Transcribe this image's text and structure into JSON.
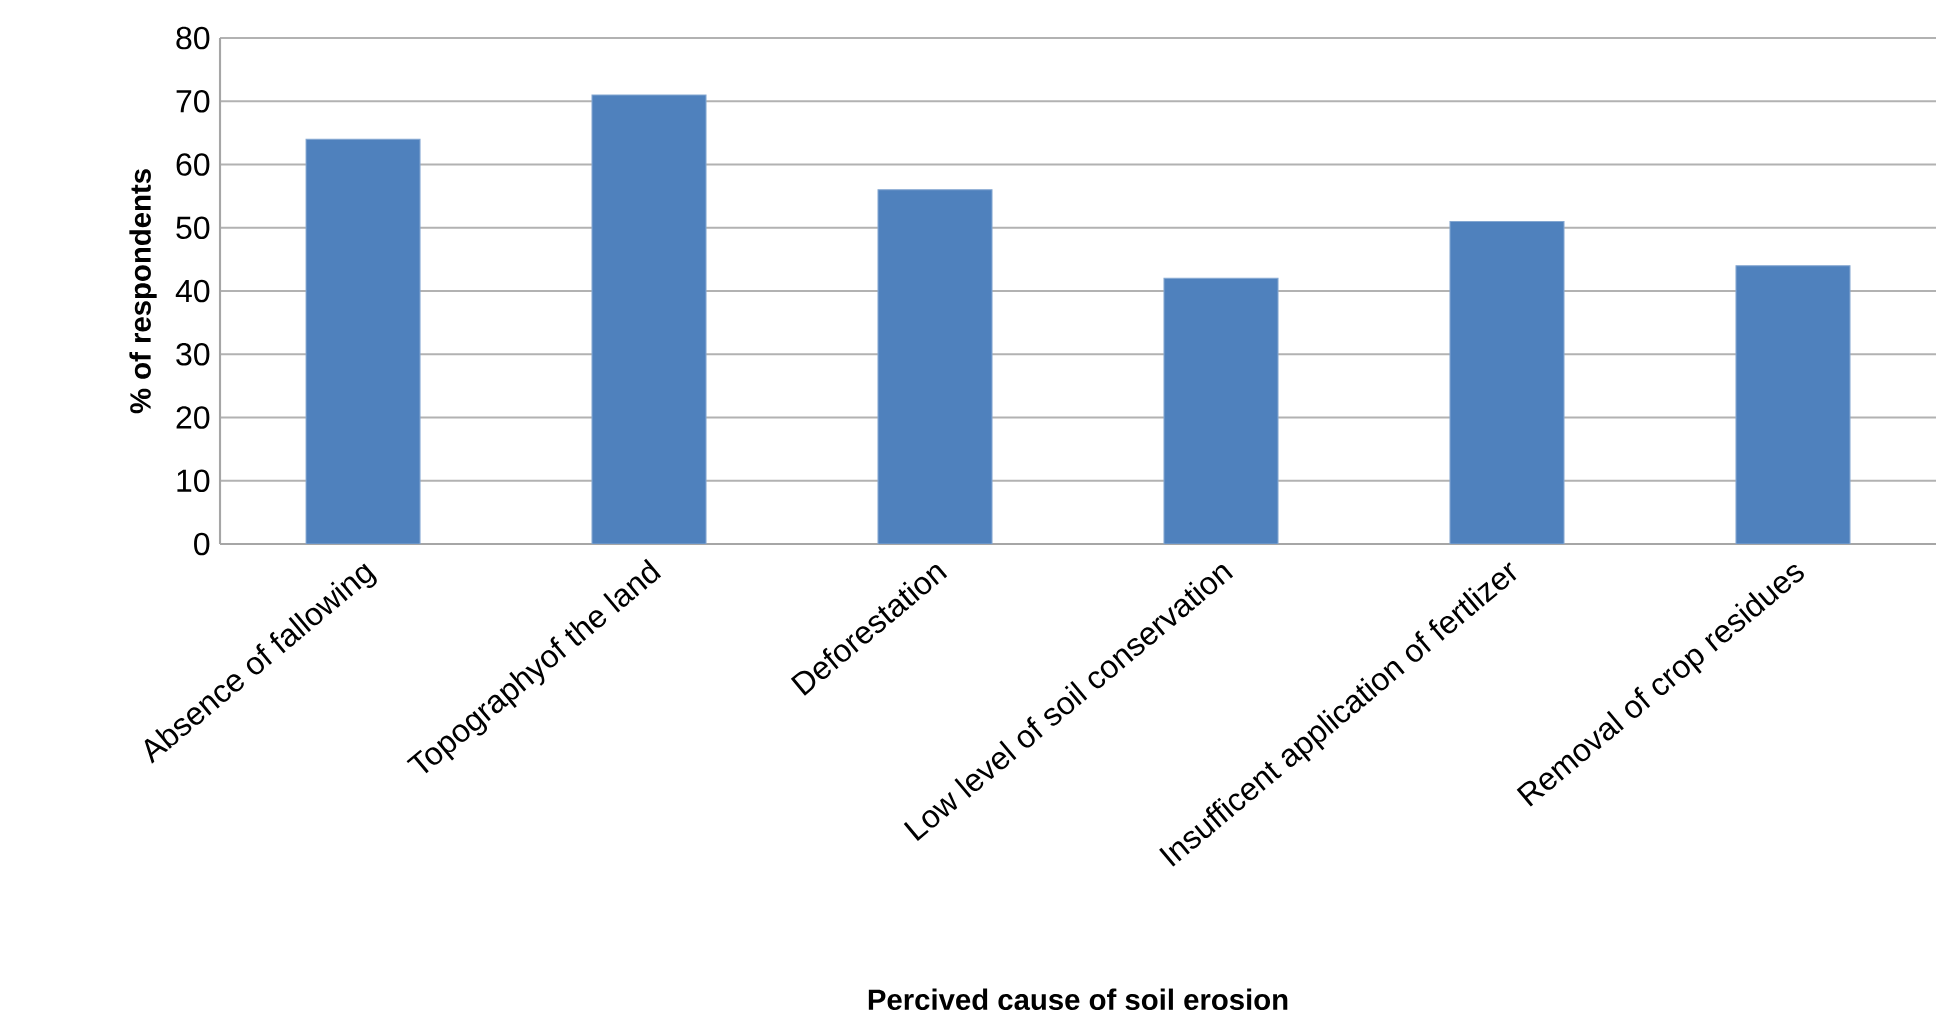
{
  "chart_data": {
    "type": "bar",
    "xlabel": "Percived cause of soil erosion",
    "ylabel": "% of respondents",
    "categories": [
      "Absence of fallowing",
      "Topographyof the land",
      "Deforestation",
      "Low level of soil conservation",
      "Insufficent application of fertlizer",
      "Removal of crop residues"
    ],
    "values": [
      64,
      71,
      56,
      42,
      51,
      44
    ],
    "color": "#4f81bd",
    "ylim": [
      0,
      80
    ],
    "yticks": [
      0,
      10,
      20,
      30,
      40,
      50,
      60,
      70,
      80
    ],
    "grid": "y"
  }
}
